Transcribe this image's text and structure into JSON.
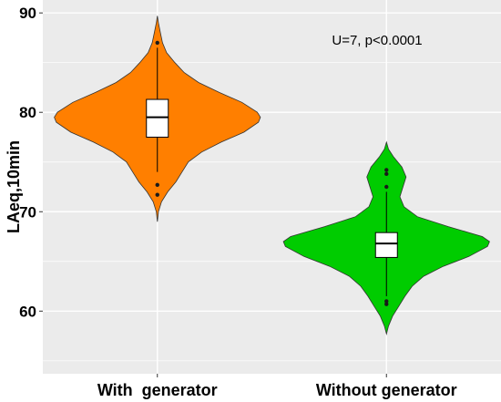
{
  "chart_data": {
    "type": "violin",
    "title": "",
    "xlabel": "",
    "ylabel": "LAeq,10min",
    "ylim": [
      53.7,
      91.3
    ],
    "yticks": [
      60,
      70,
      80,
      90
    ],
    "grid": true,
    "annotation": "U=7, p<0.0001",
    "groups": [
      {
        "category": "With  generator",
        "color": "#ff7f00",
        "range": [
          69.0,
          89.7
        ],
        "box": {
          "q1": 77.5,
          "median": 79.5,
          "q3": 81.3,
          "whisker_low": 74.0,
          "whisker_high": 86.5
        },
        "outliers": [
          87.0,
          72.7,
          71.7
        ],
        "density": [
          [
            69.0,
            0.0
          ],
          [
            70.0,
            0.01
          ],
          [
            71.0,
            0.04
          ],
          [
            72.0,
            0.1
          ],
          [
            73.0,
            0.18
          ],
          [
            74.0,
            0.24
          ],
          [
            75.0,
            0.3
          ],
          [
            76.0,
            0.43
          ],
          [
            77.0,
            0.62
          ],
          [
            78.0,
            0.84
          ],
          [
            79.0,
            0.98
          ],
          [
            79.5,
            1.0
          ],
          [
            80.0,
            0.97
          ],
          [
            81.0,
            0.82
          ],
          [
            82.0,
            0.6
          ],
          [
            83.0,
            0.4
          ],
          [
            84.0,
            0.26
          ],
          [
            85.0,
            0.17
          ],
          [
            86.0,
            0.09
          ],
          [
            87.0,
            0.05
          ],
          [
            88.0,
            0.03
          ],
          [
            89.0,
            0.01
          ],
          [
            89.7,
            0.0
          ]
        ]
      },
      {
        "category": "Without generator",
        "color": "#00cc00",
        "range": [
          57.7,
          77.0
        ],
        "box": {
          "q1": 65.4,
          "median": 66.8,
          "q3": 67.9,
          "whisker_low": 61.5,
          "whisker_high": 72.0
        },
        "outliers": [
          74.2,
          73.8,
          72.5,
          61.0,
          60.7
        ],
        "density": [
          [
            57.7,
            0.0
          ],
          [
            58.5,
            0.02
          ],
          [
            59.5,
            0.06
          ],
          [
            60.5,
            0.12
          ],
          [
            61.5,
            0.18
          ],
          [
            62.5,
            0.25
          ],
          [
            63.5,
            0.36
          ],
          [
            64.5,
            0.55
          ],
          [
            65.5,
            0.8
          ],
          [
            66.5,
            0.98
          ],
          [
            67.0,
            1.0
          ],
          [
            67.5,
            0.93
          ],
          [
            68.5,
            0.6
          ],
          [
            69.5,
            0.3
          ],
          [
            70.5,
            0.17
          ],
          [
            71.5,
            0.13
          ],
          [
            72.5,
            0.16
          ],
          [
            73.5,
            0.19
          ],
          [
            74.5,
            0.15
          ],
          [
            75.5,
            0.07
          ],
          [
            76.3,
            0.02
          ],
          [
            77.0,
            0.0
          ]
        ]
      }
    ]
  }
}
